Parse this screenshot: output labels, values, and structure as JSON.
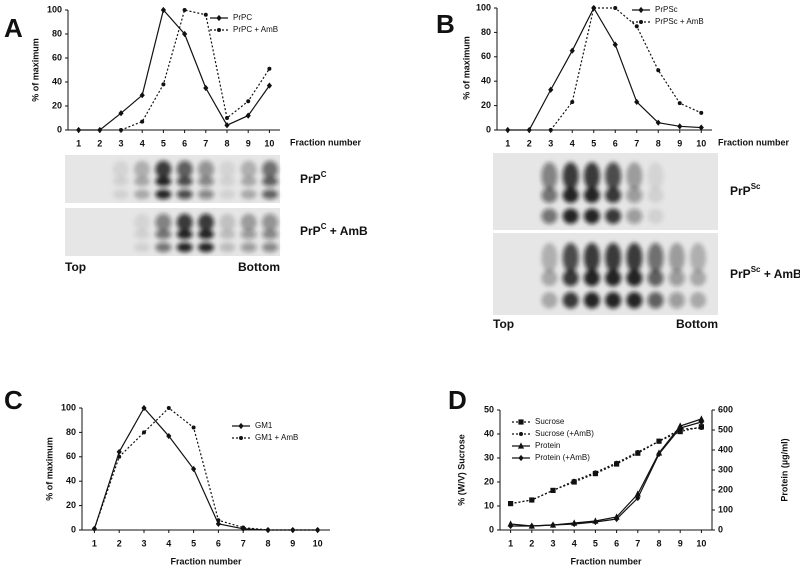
{
  "chart_data": [
    {
      "type": "line",
      "panel": "A",
      "y_label": "% of maximum",
      "x_label": "Fraction number",
      "x": [
        1,
        2,
        3,
        4,
        5,
        6,
        7,
        8,
        9,
        10
      ],
      "xlim": [
        0.5,
        10.5
      ],
      "xticks": [
        1,
        2,
        3,
        4,
        5,
        6,
        7,
        8,
        9,
        10
      ],
      "ylim": [
        0,
        100
      ],
      "yticks": [
        0,
        20,
        40,
        60,
        80,
        100
      ],
      "legend": "top-right",
      "series": [
        {
          "name": "PrPC",
          "color": "#111111",
          "dash": false,
          "marker": "diamond",
          "values": [
            0,
            0,
            14,
            29,
            100,
            80,
            35,
            4,
            12,
            37
          ]
        },
        {
          "name": "PrPC + AmB",
          "color": "#111111",
          "dash": true,
          "marker": "circle",
          "values": [
            null,
            null,
            0,
            7,
            38,
            100,
            96,
            10,
            24,
            51
          ]
        }
      ],
      "blots": [
        {
          "text": "PrP",
          "sup": "C",
          "suffix": ""
        },
        {
          "text": "PrP",
          "sup": "C",
          "suffix": " + AmB"
        }
      ],
      "blot_ends": [
        "Top",
        "Bottom"
      ]
    },
    {
      "type": "line",
      "panel": "B",
      "y_label": "% of maximum",
      "x_label": "Fraction number",
      "x": [
        1,
        2,
        3,
        4,
        5,
        6,
        7,
        8,
        9,
        10
      ],
      "xlim": [
        0.5,
        10.5
      ],
      "xticks": [
        1,
        2,
        3,
        4,
        5,
        6,
        7,
        8,
        9,
        10
      ],
      "ylim": [
        0,
        100
      ],
      "yticks": [
        0,
        20,
        40,
        60,
        80,
        100
      ],
      "legend": "top-right",
      "series": [
        {
          "name": "PrPSc",
          "color": "#111111",
          "dash": false,
          "marker": "diamond",
          "values": [
            0,
            0,
            33,
            65,
            100,
            70,
            23,
            6,
            3,
            2
          ]
        },
        {
          "name": "PrPSc + AmB",
          "color": "#111111",
          "dash": true,
          "marker": "circle",
          "values": [
            null,
            null,
            0,
            23,
            100,
            100,
            85,
            49,
            22,
            14
          ]
        }
      ],
      "blots": [
        {
          "text": "PrP",
          "sup": "Sc",
          "suffix": ""
        },
        {
          "text": "PrP",
          "sup": "Sc",
          "suffix": " + AmB"
        }
      ],
      "blot_ends": [
        "Top",
        "Bottom"
      ]
    },
    {
      "type": "line",
      "panel": "C",
      "y_label": "% of maximum",
      "x_label": "Fraction number",
      "x": [
        1,
        2,
        3,
        4,
        5,
        6,
        7,
        8,
        9,
        10
      ],
      "xlim": [
        0.5,
        10.5
      ],
      "xticks": [
        1,
        2,
        3,
        4,
        5,
        6,
        7,
        8,
        9,
        10
      ],
      "ylim": [
        0,
        100
      ],
      "yticks": [
        0,
        20,
        40,
        60,
        80,
        100
      ],
      "legend": "top-right",
      "series": [
        {
          "name": "GM1",
          "color": "#111111",
          "dash": false,
          "marker": "diamond",
          "values": [
            1,
            64,
            100,
            77,
            50,
            5,
            1,
            0,
            0,
            0
          ]
        },
        {
          "name": "GM1 + AmB",
          "color": "#111111",
          "dash": true,
          "marker": "circle",
          "values": [
            1,
            60,
            80,
            100,
            84,
            8,
            2,
            0,
            0,
            0
          ]
        }
      ]
    },
    {
      "type": "line",
      "panel": "D",
      "y_label": "% (W/V) Sucrose",
      "y2_label": "Protein (µg/ml)",
      "x_label": "Fraction number",
      "x": [
        1,
        2,
        3,
        4,
        5,
        6,
        7,
        8,
        9,
        10
      ],
      "xlim": [
        0.5,
        10.5
      ],
      "xticks": [
        1,
        2,
        3,
        4,
        5,
        6,
        7,
        8,
        9,
        10
      ],
      "ylim": [
        0,
        50
      ],
      "yticks": [
        0,
        10,
        20,
        30,
        40,
        50
      ],
      "y2lim": [
        0,
        600
      ],
      "y2ticks": [
        0,
        100,
        200,
        300,
        400,
        500,
        600
      ],
      "legend": "top-left",
      "series": [
        {
          "name": "Sucrose",
          "color": "#111111",
          "dash": true,
          "marker": "square",
          "values": [
            11,
            12.5,
            16.5,
            20,
            23.5,
            27.5,
            32,
            37,
            41,
            43
          ]
        },
        {
          "name": "Sucrose (+AmB)",
          "color": "#111111",
          "dash": true,
          "marker": "circle",
          "values": [
            11,
            12.5,
            16.5,
            20.5,
            24,
            28,
            32.5,
            37,
            42,
            42.5
          ]
        },
        {
          "name": "Protein",
          "color": "#111111",
          "dash": false,
          "marker": "triangle",
          "axis": "y2",
          "values": [
            30,
            20,
            25,
            35,
            45,
            65,
            180,
            385,
            520,
            555
          ]
        },
        {
          "name": "Protein (+AmB)",
          "color": "#111111",
          "dash": false,
          "marker": "diamond",
          "axis": "y2",
          "values": [
            20,
            20,
            25,
            30,
            40,
            55,
            160,
            380,
            510,
            540
          ]
        }
      ]
    }
  ]
}
